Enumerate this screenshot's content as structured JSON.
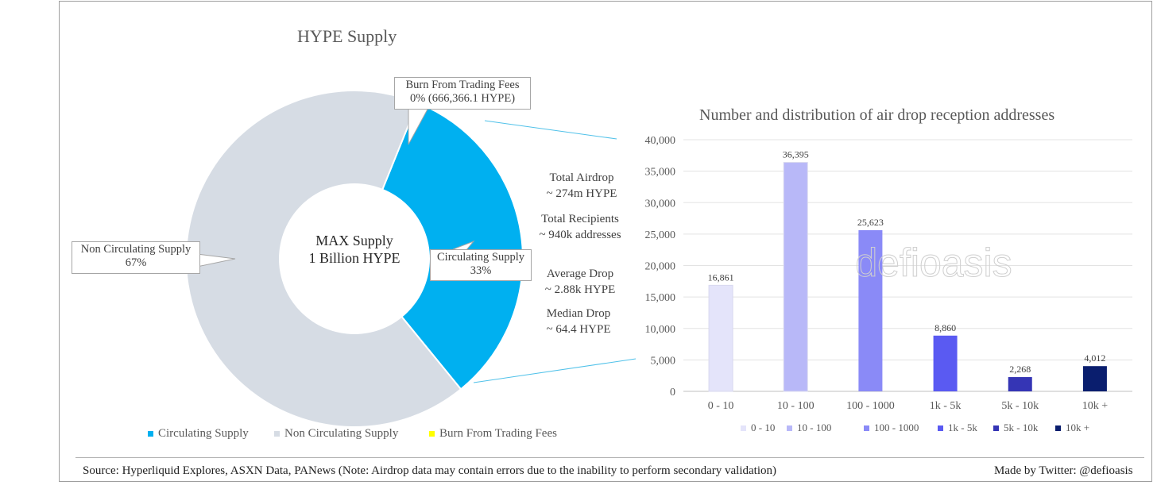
{
  "pie": {
    "title": "HYPE Supply",
    "center_line1": "MAX Supply",
    "center_line2": "1 Billion HYPE",
    "slices": [
      {
        "name": "Circulating Supply",
        "percent": 33,
        "color": "#00b0f0"
      },
      {
        "name": "Non Circulating Supply",
        "percent": 67,
        "color": "#d6dce4"
      },
      {
        "name": "Burn From Trading Fees",
        "percent": 0,
        "color": "#ffff00"
      }
    ],
    "callouts": {
      "burn_line1": "Burn From Trading Fees",
      "burn_line2": "0% (666,366.1 HYPE)",
      "noncirc_line1": "Non Circulating Supply",
      "noncirc_line2": "67%",
      "circ_line1": "Circulating Supply",
      "circ_line2": "33%"
    },
    "legend": [
      "Circulating Supply",
      "Non Circulating Supply",
      "Burn From Trading Fees"
    ]
  },
  "notes": {
    "total_airdrop": "Total Airdrop",
    "total_airdrop_value": "~ 274m HYPE",
    "total_recipients": "Total Recipients",
    "total_recipients_value": "~ 940k addresses",
    "average_drop": "Average Drop",
    "average_drop_value": "~ 2.88k HYPE",
    "median_drop": "Median Drop",
    "median_drop_value": "~ 64.4 HYPE"
  },
  "watermark": "defioasis",
  "footer": {
    "source": "Source: Hyperliquid Explores, ASXN Data, PANews (Note: Airdrop data may contain errors due to the inability to perform secondary validation)",
    "credit": "Made by Twitter: @defioasis"
  },
  "chart_data": [
    {
      "type": "pie",
      "title": "HYPE Supply",
      "categories": [
        "Circulating Supply",
        "Non Circulating Supply",
        "Burn From Trading Fees"
      ],
      "values": [
        33,
        67,
        0
      ]
    },
    {
      "type": "bar",
      "title": "Number and distribution of air drop reception addresses",
      "categories": [
        "0 - 10",
        "10 - 100",
        "100 - 1000",
        "1k - 5k",
        "5k - 10k",
        "10k +"
      ],
      "values": [
        16861,
        36395,
        25623,
        8860,
        2268,
        4012
      ],
      "value_labels": [
        "16,861",
        "36,395",
        "25,623",
        "8,860",
        "2,268",
        "4,012"
      ],
      "colors": [
        "#e4e4fa",
        "#b8b8f8",
        "#8a8af7",
        "#5a5af2",
        "#3535b5",
        "#0a1e6e"
      ],
      "ylim": [
        0,
        40000
      ],
      "yticks": [
        "0",
        "5,000",
        "10,000",
        "15,000",
        "20,000",
        "25,000",
        "30,000",
        "35,000",
        "40,000"
      ],
      "grid": true,
      "legend": "bottom"
    }
  ]
}
